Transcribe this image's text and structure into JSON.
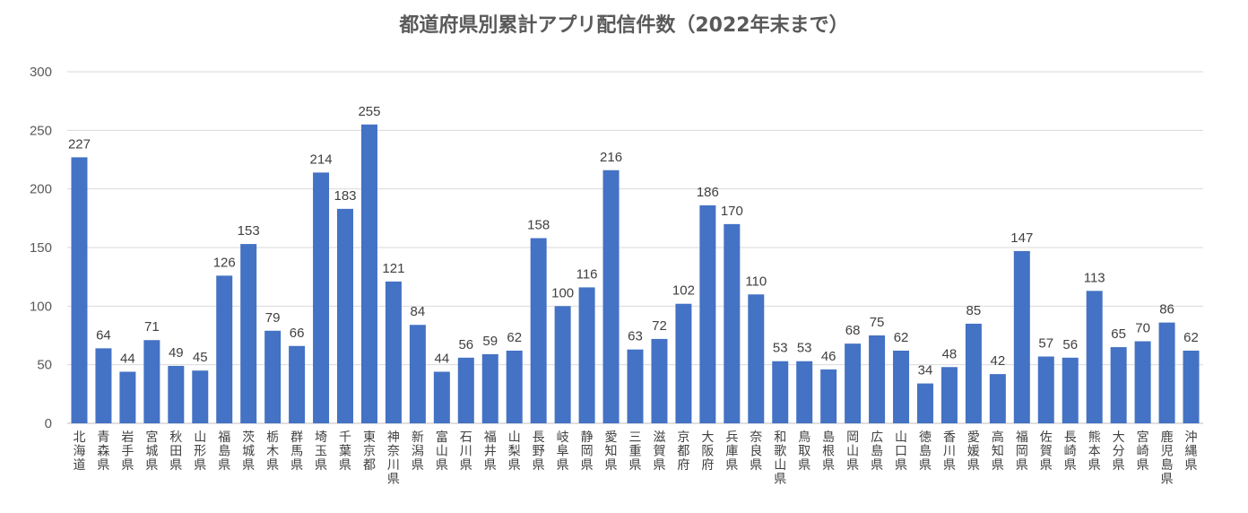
{
  "chart_data": {
    "type": "bar",
    "title": "都道府県別累計アプリ配信件数（2022年末まで）",
    "xlabel": "",
    "ylabel": "",
    "ylim": [
      0,
      300
    ],
    "yticks": [
      0,
      50,
      100,
      150,
      200,
      250,
      300
    ],
    "grid": true,
    "bar_color": "#4472C4",
    "data_labels": true,
    "categories": [
      "北海道",
      "青森県",
      "岩手県",
      "宮城県",
      "秋田県",
      "山形県",
      "福島県",
      "茨城県",
      "栃木県",
      "群馬県",
      "埼玉県",
      "千葉県",
      "東京都",
      "神奈川県",
      "新潟県",
      "富山県",
      "石川県",
      "福井県",
      "山梨県",
      "長野県",
      "岐阜県",
      "静岡県",
      "愛知県",
      "三重県",
      "滋賀県",
      "京都府",
      "大阪府",
      "兵庫県",
      "奈良県",
      "和歌山県",
      "鳥取県",
      "島根県",
      "岡山県",
      "広島県",
      "山口県",
      "徳島県",
      "香川県",
      "愛媛県",
      "高知県",
      "福岡県",
      "佐賀県",
      "長崎県",
      "熊本県",
      "大分県",
      "宮崎県",
      "鹿児島県",
      "沖縄県"
    ],
    "values": [
      227,
      64,
      44,
      71,
      49,
      45,
      126,
      153,
      79,
      66,
      214,
      183,
      255,
      121,
      84,
      44,
      56,
      59,
      62,
      158,
      100,
      116,
      216,
      63,
      72,
      102,
      186,
      170,
      110,
      53,
      53,
      46,
      68,
      75,
      62,
      34,
      48,
      85,
      42,
      147,
      57,
      56,
      113,
      65,
      70,
      86,
      62
    ]
  }
}
